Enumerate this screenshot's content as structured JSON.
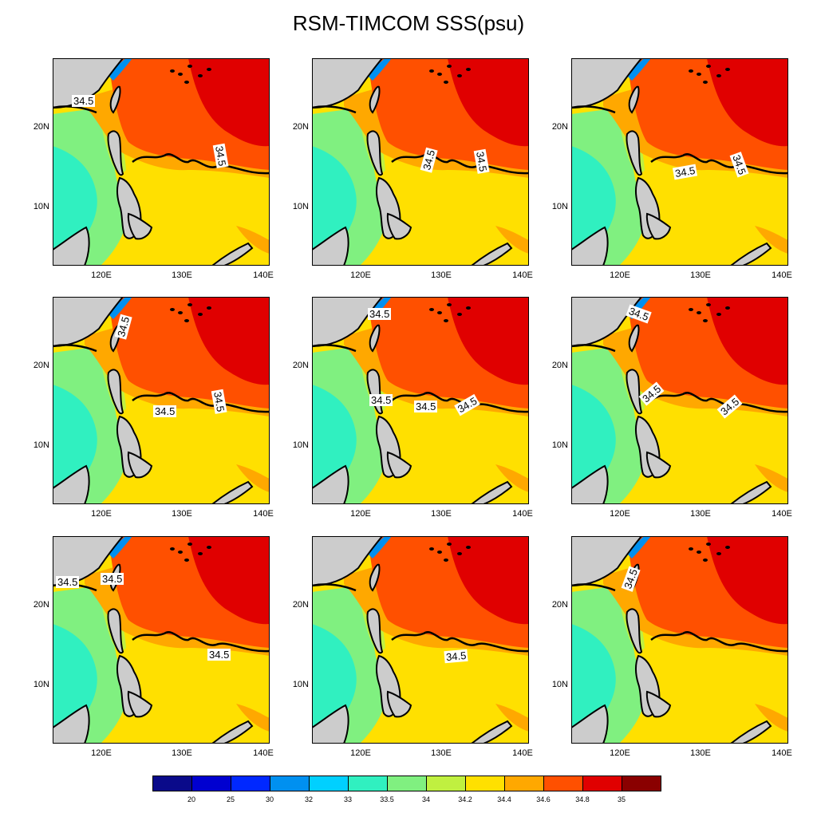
{
  "title": "RSM-TIMCOM SSS(psu)",
  "colors": {
    "land": "#cccccc",
    "levels": [
      "#0a0a8a",
      "#0000d0",
      "#0028ff",
      "#0090f0",
      "#00d0ff",
      "#30f0c0",
      "#80f080",
      "#c0f040",
      "#ffe000",
      "#ffa800",
      "#ff5000",
      "#e00000",
      "#8a0000"
    ]
  },
  "axes": {
    "x_ticks": [
      "120E",
      "130E",
      "140E"
    ],
    "y_ticks": [
      "20N",
      "10N"
    ]
  },
  "colorbar": {
    "labels": [
      "20",
      "25",
      "30",
      "32",
      "33",
      "33.5",
      "34",
      "34.2",
      "34.4",
      "34.6",
      "34.8",
      "35"
    ]
  },
  "panels": [
    {
      "contour_labels": [
        "34.5",
        "34.5"
      ]
    },
    {
      "contour_labels": [
        "34.5",
        "34.5"
      ]
    },
    {
      "contour_labels": [
        "34.5",
        "34.5"
      ]
    },
    {
      "contour_labels": [
        "34.5",
        "34.5",
        "34.5"
      ]
    },
    {
      "contour_labels": [
        "34.5",
        "34.5",
        "34.5",
        "34.5"
      ]
    },
    {
      "contour_labels": [
        "34.5",
        "34.5",
        "34.5"
      ]
    },
    {
      "contour_labels": [
        "34.5",
        "34.5",
        "34.5"
      ]
    },
    {
      "contour_labels": [
        "34.5"
      ]
    },
    {
      "contour_labels": [
        "34.5"
      ]
    }
  ]
}
